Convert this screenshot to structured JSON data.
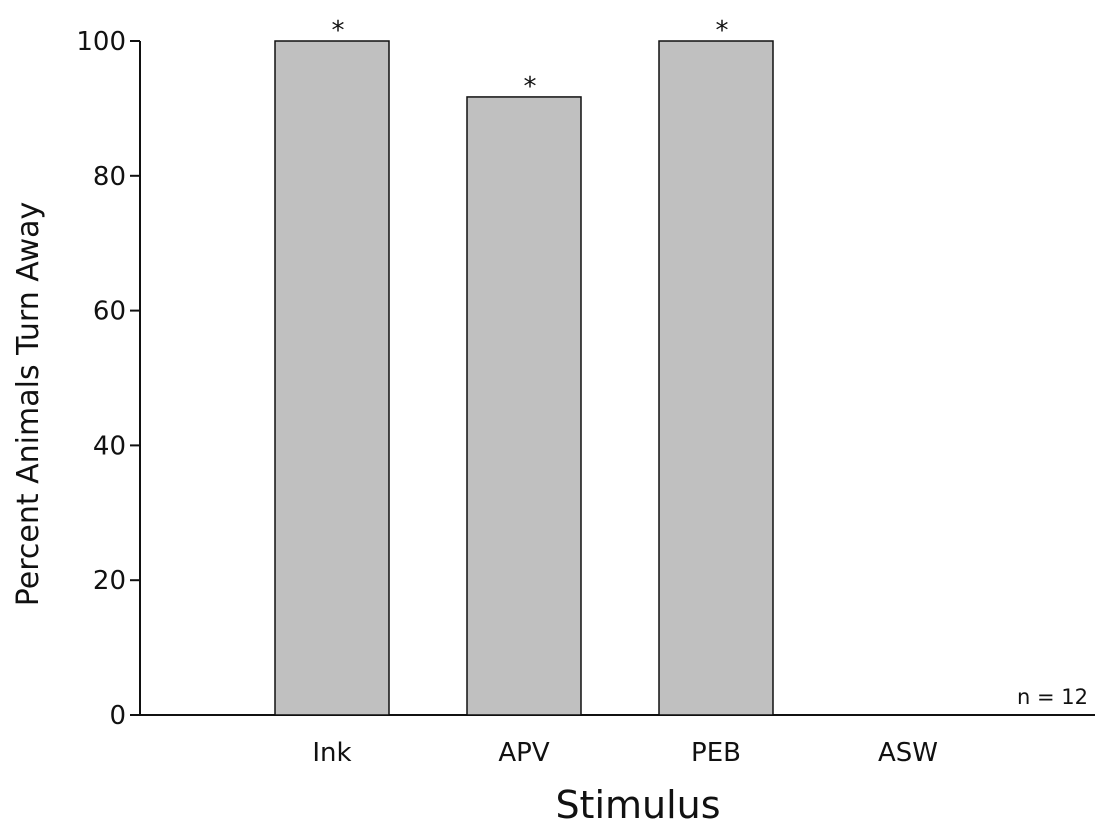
{
  "chart_data": {
    "type": "bar",
    "xlabel": "Stimulus",
    "ylabel": "Percent Animals  Turn Away",
    "ylim": [
      0,
      100
    ],
    "yticks": [
      0,
      20,
      40,
      60,
      80,
      100
    ],
    "categories": [
      "Ink",
      "APV",
      "PEB",
      "ASW"
    ],
    "values": [
      100,
      91.7,
      100,
      0
    ],
    "significance": [
      "*",
      "*",
      "*",
      ""
    ],
    "annotation": "n = 12",
    "bar_color": "#c0c0c0",
    "bar_edge_color": "#111111",
    "grid": false,
    "legend": "none"
  }
}
